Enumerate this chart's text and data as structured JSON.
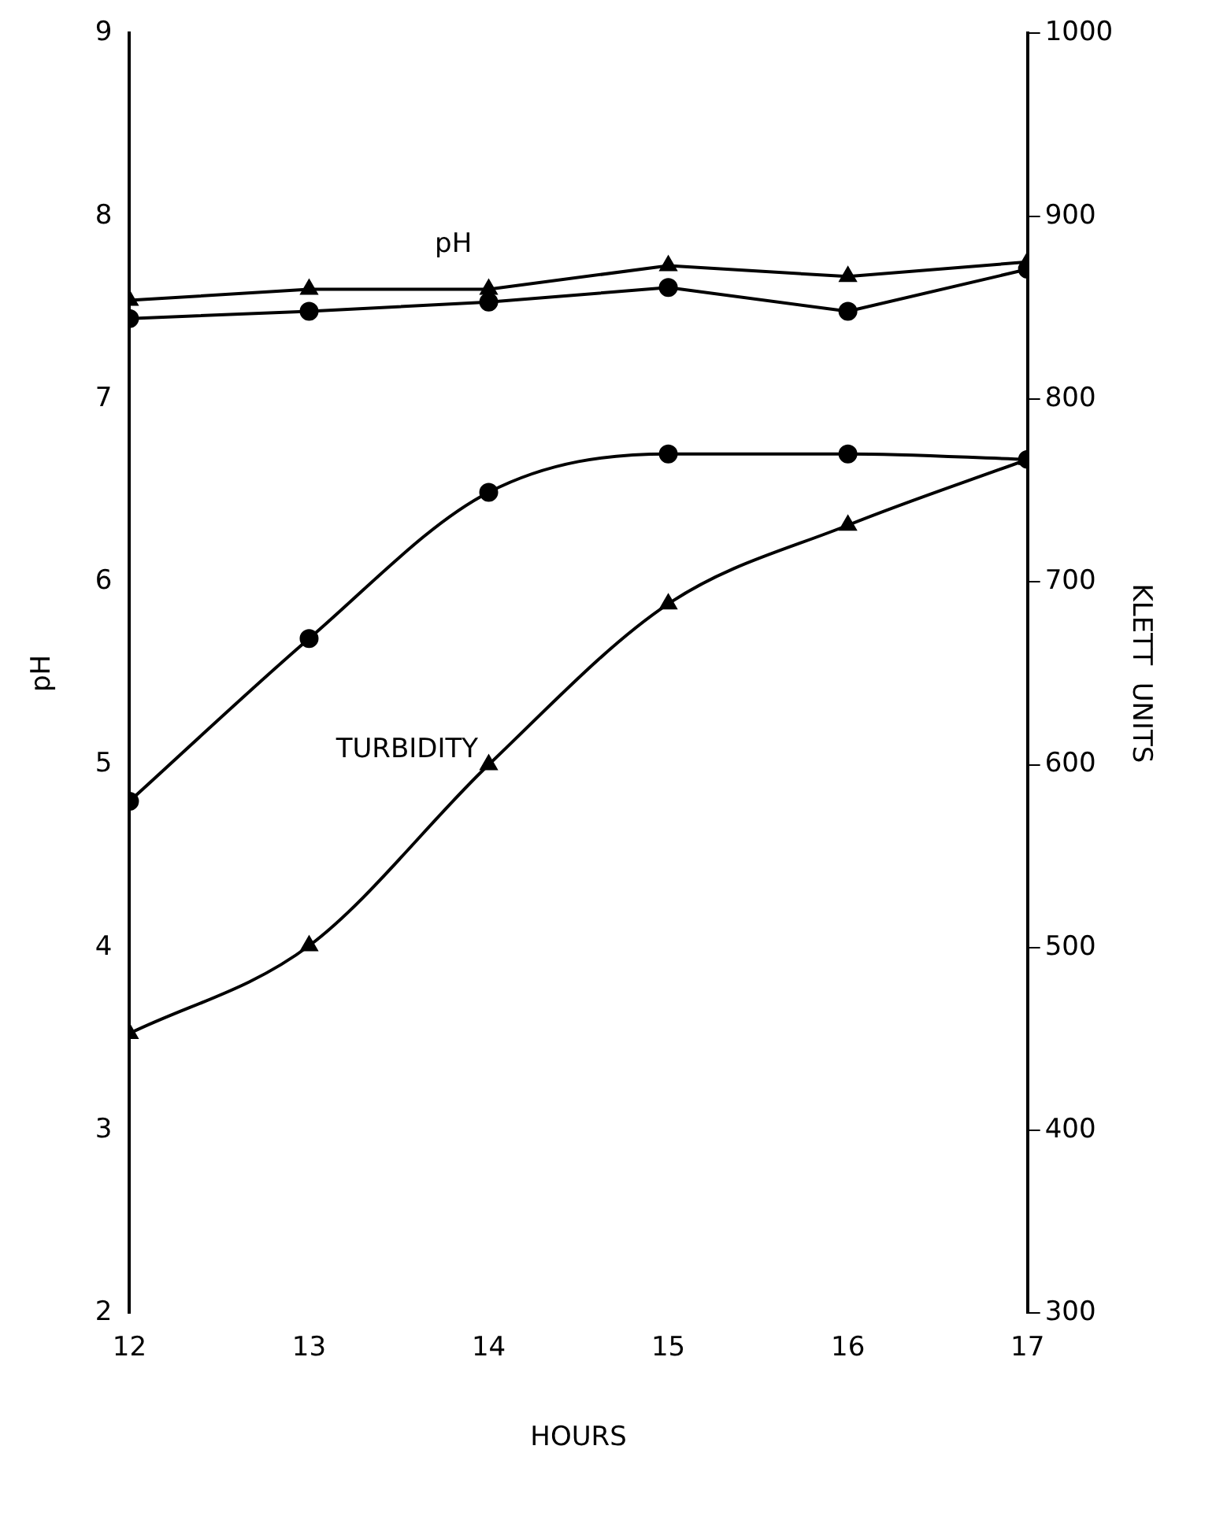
{
  "chart_data": {
    "type": "line",
    "xlabel": "HOURS",
    "ylabel": "pH",
    "y2label": "KLETT  UNITS",
    "x": [
      12,
      13,
      14,
      15,
      16,
      17
    ],
    "series": [
      {
        "color": "#000000",
        "marker": "triangle",
        "values": [
          7.54,
          7.6,
          7.6,
          7.73,
          7.67,
          7.75
        ]
      },
      {
        "color": "#000000",
        "marker": "circle",
        "values": [
          7.44,
          7.48,
          7.53,
          7.61,
          7.48,
          7.71
        ]
      },
      {
        "color": "#000000",
        "marker": "circle",
        "axis": "y2",
        "values": [
          580,
          669,
          749,
          770,
          770,
          767
        ]
      },
      {
        "color": "#000000",
        "marker": "triangle",
        "axis": "y2",
        "values": [
          453,
          501,
          600,
          688,
          731,
          767
        ]
      }
    ],
    "annotations": [
      "pH",
      "TURBIDITY"
    ],
    "xlim": [
      12,
      17
    ],
    "xticks": [
      12,
      13,
      14,
      15,
      16,
      17
    ],
    "ylim": [
      2,
      9
    ],
    "yticks": [
      2,
      3,
      4,
      5,
      6,
      7,
      8,
      9
    ],
    "y2lim": [
      300,
      1000
    ],
    "y2ticks": [
      300,
      400,
      500,
      600,
      700,
      800,
      900,
      1000
    ],
    "grid": false,
    "legend": false
  }
}
